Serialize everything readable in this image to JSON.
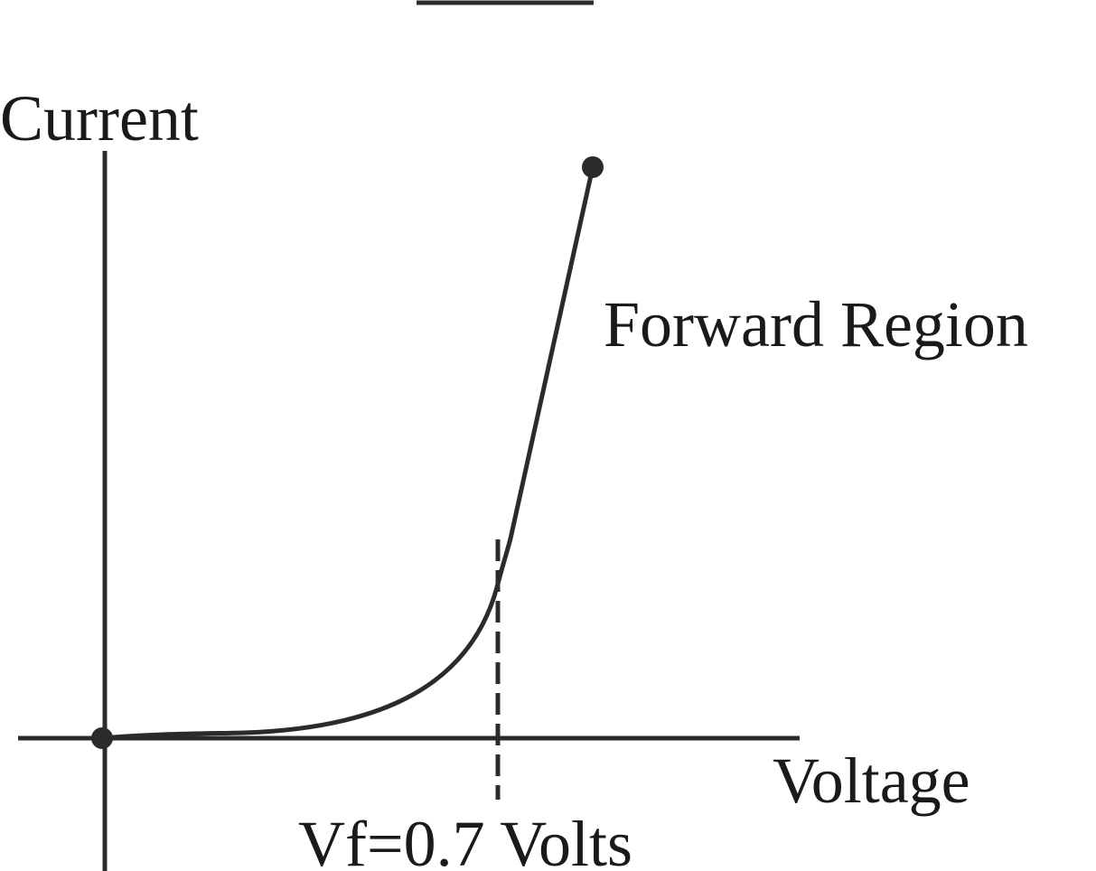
{
  "labels": {
    "y_axis": "Current",
    "region": "Forward Region",
    "x_axis": "Voltage",
    "threshold": "Vf=0.7 Volts"
  }
}
